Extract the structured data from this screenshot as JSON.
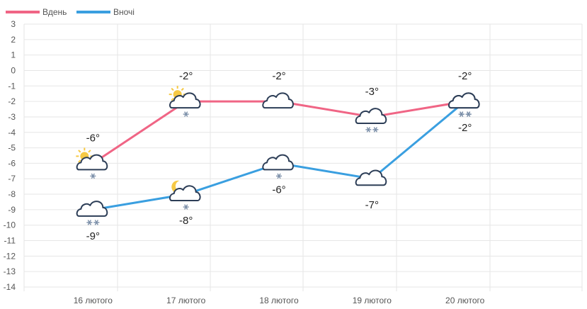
{
  "chart_data": {
    "type": "line",
    "categories": [
      "16 лютого",
      "17 лютого",
      "18 лютого",
      "19 лютого",
      "20 лютого"
    ],
    "ylim": [
      -14,
      3
    ],
    "y_ticks": [
      3,
      2,
      1,
      0,
      -1,
      -2,
      -3,
      -4,
      -5,
      -6,
      -7,
      -8,
      -9,
      -10,
      -11,
      -12,
      -13,
      -14
    ],
    "grid": true,
    "legend_position": "top-left",
    "series": [
      {
        "name": "Вдень",
        "color": "#f06585",
        "values": [
          -6,
          -2,
          -2,
          -3,
          -2
        ],
        "labels": [
          "-6°",
          "-2°",
          "-2°",
          "-3°",
          "-2°"
        ],
        "icons": [
          "sun-cloud-snow-icon",
          "sun-cloud-snow-icon",
          "cloud-icon",
          "cloud-snow-icon",
          "cloud-snow-icon"
        ]
      },
      {
        "name": "Вночі",
        "color": "#3a9fe0",
        "values": [
          -9,
          -8,
          -6,
          -7,
          -2
        ],
        "labels": [
          "-9°",
          "-8°",
          "-6°",
          "-7°",
          "-2°"
        ],
        "icons": [
          "cloud-snow-icon",
          "moon-cloud-snow-icon",
          "cloud-snow-icon",
          "cloud-icon",
          "cloud-snow-icon"
        ]
      }
    ]
  }
}
